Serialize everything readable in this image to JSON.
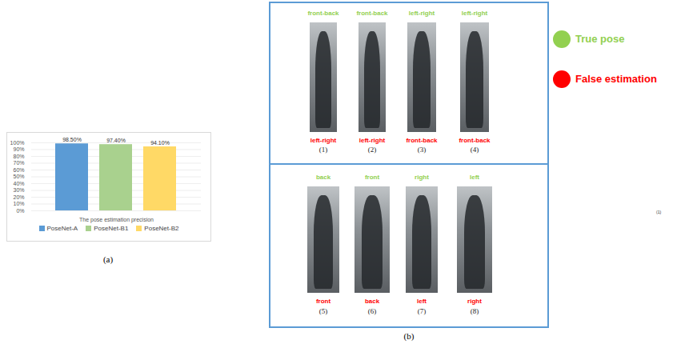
{
  "chart_data": {
    "type": "bar",
    "panel": "(a)",
    "categories": [
      "The pose estimation precision"
    ],
    "series": [
      {
        "name": "PoseNet-A",
        "color": "#5b9bd5",
        "values": [
          98.5
        ],
        "value_labels": [
          "98.50%"
        ]
      },
      {
        "name": "PoseNet-B1",
        "color": "#a9d18e",
        "values": [
          97.4
        ],
        "value_labels": [
          "97.40%"
        ]
      },
      {
        "name": "PoseNet-B2",
        "color": "#ffd966",
        "values": [
          94.1
        ],
        "value_labels": [
          "94.10%"
        ]
      }
    ],
    "ylim": [
      0,
      100
    ],
    "yticks": [
      {
        "value": 0,
        "label": "0%"
      },
      {
        "value": 10,
        "label": "10%"
      },
      {
        "value": 20,
        "label": "20%"
      },
      {
        "value": 30,
        "label": "30%"
      },
      {
        "value": 40,
        "label": "40%"
      },
      {
        "value": 50,
        "label": "50%"
      },
      {
        "value": 60,
        "label": "60%"
      },
      {
        "value": 70,
        "label": "70%"
      },
      {
        "value": 80,
        "label": "80%"
      },
      {
        "value": 90,
        "label": "90%"
      },
      {
        "value": 100,
        "label": "100%"
      }
    ],
    "grid": true,
    "legend": "bottom",
    "data_labels": true
  },
  "panel_b": {
    "label": "(b)",
    "rows": [
      [
        {
          "true_pose": "front-back",
          "false_estimation": "left-right",
          "index": "(1)"
        },
        {
          "true_pose": "front-back",
          "false_estimation": "left-right",
          "index": "(2)"
        },
        {
          "true_pose": "left-right",
          "false_estimation": "front-back",
          "index": "(3)"
        },
        {
          "true_pose": "left-right",
          "false_estimation": "front-back",
          "index": "(4)"
        }
      ],
      [
        {
          "true_pose": "back",
          "false_estimation": "front",
          "index": "(5)"
        },
        {
          "true_pose": "front",
          "false_estimation": "back",
          "index": "(6)"
        },
        {
          "true_pose": "right",
          "false_estimation": "left",
          "index": "(7)"
        },
        {
          "true_pose": "left",
          "false_estimation": "right",
          "index": "(8)"
        }
      ]
    ],
    "legend": [
      {
        "label": "True pose",
        "color": "#92d050"
      },
      {
        "label": "False estimation",
        "color": "#ff0000"
      }
    ],
    "stray_label": "(1)"
  }
}
